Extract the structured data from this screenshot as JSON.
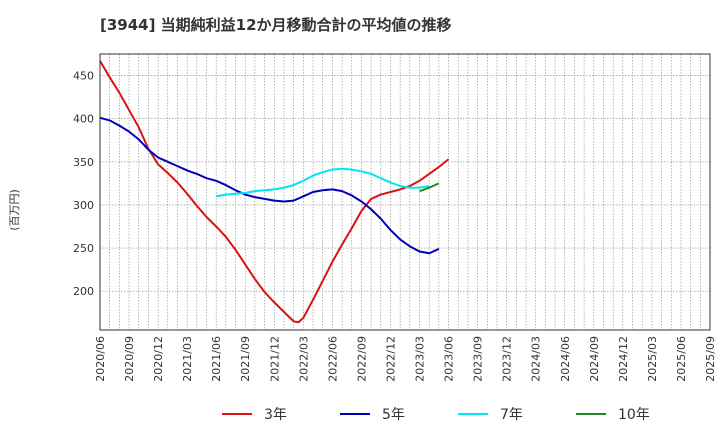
{
  "chart_data": {
    "type": "line",
    "title": "[3944]  当期純利益12か月移動合計の平均値の推移",
    "ylabel": "(百万円)",
    "xlabel": "",
    "ylim": [
      155,
      475
    ],
    "yticks": [
      200,
      250,
      300,
      350,
      400,
      450
    ],
    "xticks": [
      "2020/06",
      "2020/09",
      "2020/12",
      "2021/03",
      "2021/06",
      "2021/09",
      "2021/12",
      "2022/03",
      "2022/06",
      "2022/09",
      "2022/12",
      "2023/03",
      "2023/06",
      "2023/09",
      "2023/12",
      "2024/03",
      "2024/06",
      "2024/09",
      "2024/12",
      "2025/03",
      "2025/06",
      "2025/09"
    ],
    "grid": true,
    "legend_position": "bottom",
    "series": [
      {
        "name": "3年",
        "color": "#dd1111",
        "points": [
          [
            0,
            467
          ],
          [
            1,
            448
          ],
          [
            2,
            430
          ],
          [
            3,
            410
          ],
          [
            4,
            390
          ],
          [
            5,
            365
          ],
          [
            6,
            347
          ],
          [
            7,
            337
          ],
          [
            8,
            326
          ],
          [
            9,
            313
          ],
          [
            10,
            299
          ],
          [
            11,
            286
          ],
          [
            12,
            275
          ],
          [
            13,
            263
          ],
          [
            14,
            248
          ],
          [
            15,
            231
          ],
          [
            16,
            214
          ],
          [
            17,
            199
          ],
          [
            18,
            187
          ],
          [
            19,
            176
          ],
          [
            20,
            165
          ],
          [
            20.5,
            164
          ],
          [
            21,
            169
          ],
          [
            22,
            190
          ],
          [
            23,
            212
          ],
          [
            24,
            234
          ],
          [
            25,
            254
          ],
          [
            26,
            273
          ],
          [
            27,
            293
          ],
          [
            28,
            307
          ],
          [
            29,
            312
          ],
          [
            30,
            315
          ],
          [
            31,
            318
          ],
          [
            32,
            322
          ],
          [
            33,
            328
          ],
          [
            34,
            336
          ],
          [
            35,
            344
          ],
          [
            36,
            353
          ]
        ]
      },
      {
        "name": "5年",
        "color": "#0000bb",
        "points": [
          [
            0,
            401
          ],
          [
            1,
            398
          ],
          [
            2,
            392
          ],
          [
            3,
            385
          ],
          [
            4,
            376
          ],
          [
            5,
            364
          ],
          [
            6,
            355
          ],
          [
            7,
            350
          ],
          [
            8,
            345
          ],
          [
            9,
            340
          ],
          [
            10,
            336
          ],
          [
            11,
            331
          ],
          [
            12,
            328
          ],
          [
            13,
            323
          ],
          [
            14,
            317
          ],
          [
            15,
            312
          ],
          [
            16,
            309
          ],
          [
            17,
            307
          ],
          [
            18,
            305
          ],
          [
            19,
            304
          ],
          [
            20,
            305
          ],
          [
            21,
            310
          ],
          [
            22,
            315
          ],
          [
            23,
            317
          ],
          [
            24,
            318
          ],
          [
            25,
            316
          ],
          [
            26,
            311
          ],
          [
            27,
            304
          ],
          [
            28,
            295
          ],
          [
            29,
            284
          ],
          [
            30,
            271
          ],
          [
            31,
            260
          ],
          [
            32,
            252
          ],
          [
            33,
            246
          ],
          [
            34,
            244
          ],
          [
            35,
            249
          ]
        ]
      },
      {
        "name": "7年",
        "color": "#00e5ee",
        "points": [
          [
            12,
            310
          ],
          [
            13,
            312
          ],
          [
            14,
            313
          ],
          [
            15,
            314
          ],
          [
            16,
            316
          ],
          [
            17,
            317
          ],
          [
            18,
            318
          ],
          [
            19,
            320
          ],
          [
            20,
            323
          ],
          [
            21,
            328
          ],
          [
            22,
            334
          ],
          [
            23,
            338
          ],
          [
            24,
            341
          ],
          [
            25,
            342
          ],
          [
            26,
            341
          ],
          [
            27,
            339
          ],
          [
            28,
            336
          ],
          [
            29,
            331
          ],
          [
            30,
            326
          ],
          [
            31,
            322
          ],
          [
            32,
            320
          ],
          [
            33,
            320
          ],
          [
            34,
            322
          ]
        ]
      },
      {
        "name": "10年",
        "color": "#228822",
        "points": [
          [
            33,
            316
          ],
          [
            34,
            320
          ],
          [
            35,
            325
          ]
        ]
      }
    ]
  }
}
